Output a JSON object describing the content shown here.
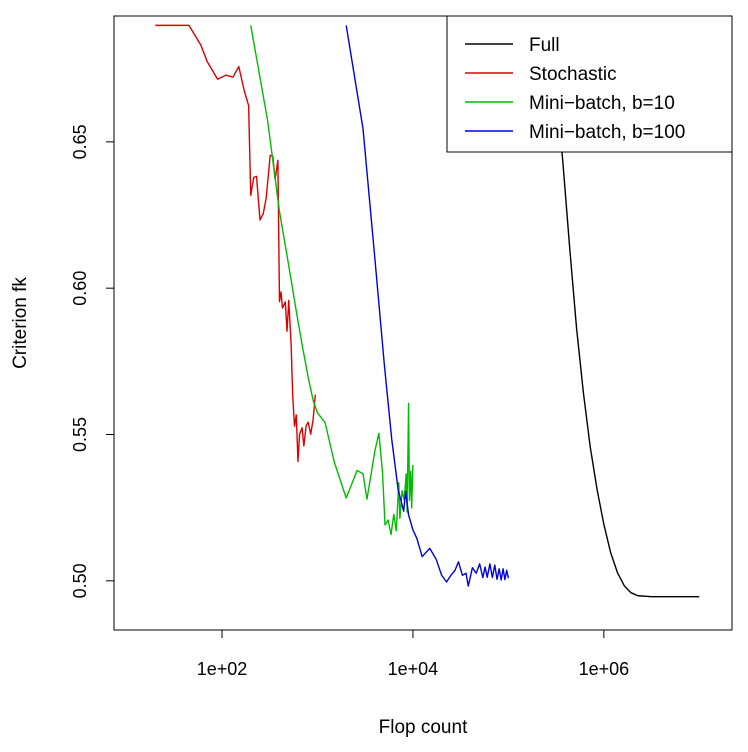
{
  "chart_data": {
    "type": "line",
    "title": "",
    "xlabel": "Flop count",
    "ylabel": "Criterion fk",
    "x_scale": "log10",
    "xlim": [
      7.39,
      22000000
    ],
    "ylim": [
      0.4832,
      0.693
    ],
    "x_ticks": [
      {
        "value": 100,
        "label": "1e+02"
      },
      {
        "value": 10000,
        "label": "1e+04"
      },
      {
        "value": 1000000,
        "label": "1e+06"
      }
    ],
    "y_ticks": [
      {
        "value": 0.5,
        "label": "0.50"
      },
      {
        "value": 0.55,
        "label": "0.55"
      },
      {
        "value": 0.6,
        "label": "0.60"
      },
      {
        "value": 0.65,
        "label": "0.65"
      }
    ],
    "grid": false,
    "legend_position": "top-right",
    "series": [
      {
        "name": "Full",
        "color": "#000000",
        "points": [
          [
            268300,
            0.6868
          ],
          [
            316200,
            0.6704
          ],
          [
            372800,
            0.6427
          ],
          [
            439400,
            0.6135
          ],
          [
            517900,
            0.5863
          ],
          [
            610500,
            0.5643
          ],
          [
            719700,
            0.5458
          ],
          [
            848400,
            0.5313
          ],
          [
            1000000,
            0.5193
          ],
          [
            1179000,
            0.5096
          ],
          [
            1389000,
            0.5028
          ],
          [
            1638000,
            0.4983
          ],
          [
            1931000,
            0.4959
          ],
          [
            2276000,
            0.4949
          ],
          [
            3162000,
            0.4946
          ],
          [
            5179000,
            0.4946
          ],
          [
            10000000,
            0.4946
          ]
        ]
      },
      {
        "name": "Stochastic",
        "color": "#dd0000",
        "points": [
          [
            20,
            0.6898
          ],
          [
            30,
            0.6898
          ],
          [
            45,
            0.6898
          ],
          [
            60,
            0.6831
          ],
          [
            70,
            0.6774
          ],
          [
            90,
            0.6714
          ],
          [
            110,
            0.6728
          ],
          [
            130,
            0.6721
          ],
          [
            150,
            0.6757
          ],
          [
            170,
            0.6678
          ],
          [
            190,
            0.6624
          ],
          [
            200,
            0.6317
          ],
          [
            215,
            0.6379
          ],
          [
            230,
            0.6382
          ],
          [
            250,
            0.6233
          ],
          [
            270,
            0.6254
          ],
          [
            290,
            0.6307
          ],
          [
            320,
            0.6454
          ],
          [
            340,
            0.6452
          ],
          [
            360,
            0.6372
          ],
          [
            385,
            0.6437
          ],
          [
            400,
            0.5954
          ],
          [
            415,
            0.5987
          ],
          [
            430,
            0.5932
          ],
          [
            460,
            0.5953
          ],
          [
            480,
            0.5853
          ],
          [
            500,
            0.5958
          ],
          [
            530,
            0.5808
          ],
          [
            550,
            0.5634
          ],
          [
            575,
            0.5528
          ],
          [
            600,
            0.5567
          ],
          [
            625,
            0.5408
          ],
          [
            650,
            0.5501
          ],
          [
            690,
            0.5523
          ],
          [
            720,
            0.5461
          ],
          [
            760,
            0.5529
          ],
          [
            800,
            0.5542
          ],
          [
            850,
            0.5501
          ],
          [
            900,
            0.5551
          ],
          [
            950,
            0.5636
          ]
        ]
      },
      {
        "name": "Mini−batch, b=10",
        "color": "#00bb00",
        "points": [
          [
            200,
            0.6898
          ],
          [
            300,
            0.6574
          ],
          [
            400,
            0.6262
          ],
          [
            500,
            0.6077
          ],
          [
            600,
            0.5921
          ],
          [
            700,
            0.5796
          ],
          [
            800,
            0.5695
          ],
          [
            900,
            0.5617
          ],
          [
            1000,
            0.5574
          ],
          [
            1200,
            0.5541
          ],
          [
            1500,
            0.5406
          ],
          [
            2000,
            0.5283
          ],
          [
            2600,
            0.5377
          ],
          [
            3000,
            0.5366
          ],
          [
            3300,
            0.5279
          ],
          [
            4000,
            0.5445
          ],
          [
            4400,
            0.5504
          ],
          [
            4800,
            0.5371
          ],
          [
            5100,
            0.5191
          ],
          [
            5500,
            0.5208
          ],
          [
            5900,
            0.5158
          ],
          [
            6300,
            0.5227
          ],
          [
            6700,
            0.5171
          ],
          [
            7100,
            0.5335
          ],
          [
            7300,
            0.5214
          ],
          [
            7700,
            0.5308
          ],
          [
            8100,
            0.5276
          ],
          [
            8500,
            0.5365
          ],
          [
            8700,
            0.5235
          ],
          [
            9000,
            0.5606
          ],
          [
            9200,
            0.5275
          ],
          [
            9500,
            0.5375
          ],
          [
            9700,
            0.5249
          ],
          [
            10000,
            0.5396
          ]
        ]
      },
      {
        "name": "Mini−batch, b=100",
        "color": "#0000dd",
        "points": [
          [
            2000,
            0.6898
          ],
          [
            3000,
            0.6545
          ],
          [
            4000,
            0.6099
          ],
          [
            5000,
            0.5744
          ],
          [
            6000,
            0.5483
          ],
          [
            7000,
            0.5312
          ],
          [
            8000,
            0.5238
          ],
          [
            8400,
            0.5306
          ],
          [
            9000,
            0.5225
          ],
          [
            10000,
            0.5174
          ],
          [
            11000,
            0.5145
          ],
          [
            12500,
            0.5083
          ],
          [
            15000,
            0.5111
          ],
          [
            17500,
            0.5074
          ],
          [
            20000,
            0.5019
          ],
          [
            22500,
            0.4996
          ],
          [
            25000,
            0.5019
          ],
          [
            27500,
            0.5035
          ],
          [
            30000,
            0.5065
          ],
          [
            33000,
            0.5019
          ],
          [
            36000,
            0.5026
          ],
          [
            38000,
            0.4982
          ],
          [
            42000,
            0.5045
          ],
          [
            46000,
            0.5026
          ],
          [
            50000,
            0.5058
          ],
          [
            54000,
            0.5011
          ],
          [
            57000,
            0.5047
          ],
          [
            60000,
            0.5012
          ],
          [
            64000,
            0.5058
          ],
          [
            68000,
            0.5011
          ],
          [
            72000,
            0.5054
          ],
          [
            76000,
            0.5005
          ],
          [
            80000,
            0.5041
          ],
          [
            84000,
            0.5003
          ],
          [
            88000,
            0.5041
          ],
          [
            92000,
            0.5004
          ],
          [
            96000,
            0.5036
          ],
          [
            100000,
            0.5009
          ]
        ]
      }
    ]
  }
}
